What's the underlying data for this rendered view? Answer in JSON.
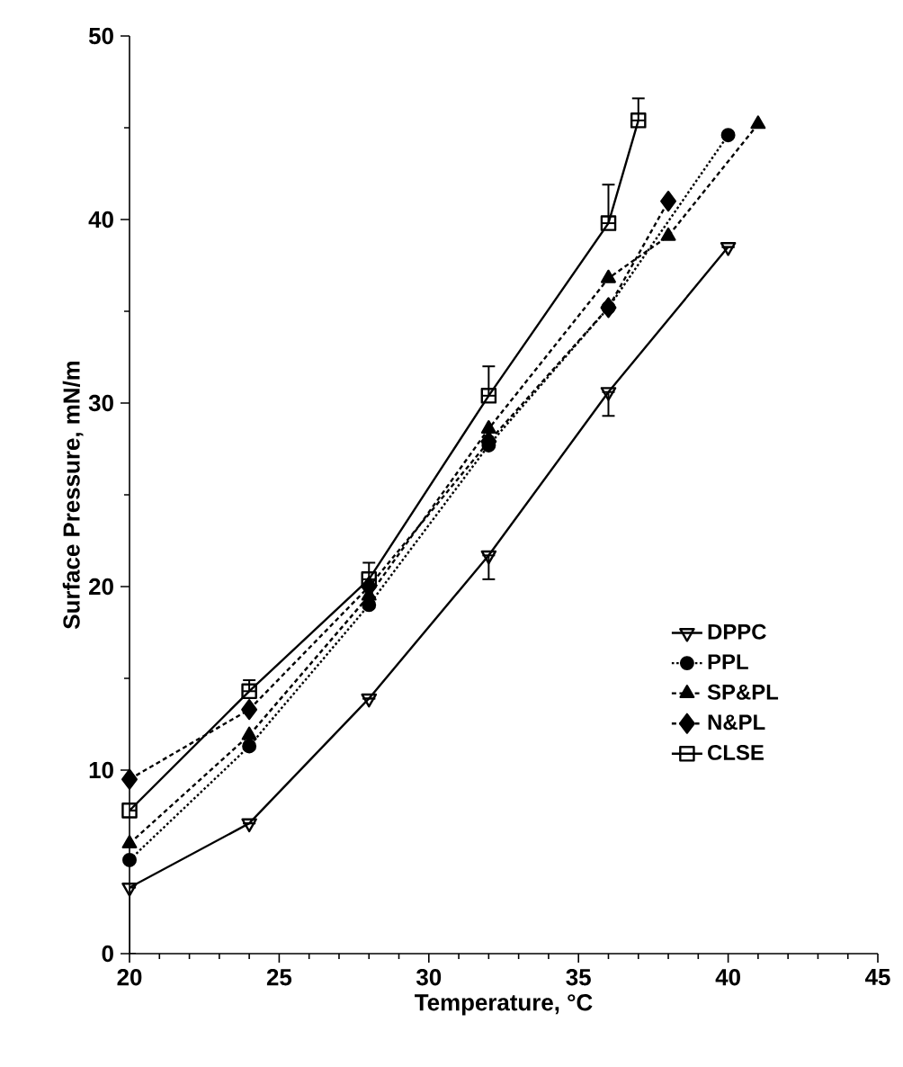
{
  "chart_data": {
    "type": "line",
    "xlabel": "Temperature, °C",
    "ylabel": "Surface Pressure, mN/m",
    "xlim": [
      20,
      45
    ],
    "xticks": [
      20,
      25,
      30,
      35,
      40,
      45
    ],
    "ylim": [
      0,
      50
    ],
    "yticks": [
      0,
      10,
      20,
      30,
      40,
      50
    ],
    "grid": false,
    "legend": "bottom right",
    "series": [
      {
        "name": "DPPC",
        "color": "#000000",
        "marker": "triangle-down",
        "line_style": "solid",
        "x": [
          20,
          24,
          28,
          32,
          36,
          40
        ],
        "values": [
          3.6,
          7.1,
          13.9,
          21.7,
          30.6,
          38.5
        ],
        "errors": [
          [
            0,
            3.6
          ],
          null,
          null,
          [
            20.4,
            21.7
          ],
          [
            29.3,
            30.6
          ],
          null
        ]
      },
      {
        "name": "PPL",
        "color": "#000000",
        "marker": "circle",
        "line_style": "dotted",
        "x": [
          20,
          24,
          28,
          32,
          36,
          40
        ],
        "values": [
          5.1,
          11.3,
          19.0,
          27.7,
          35.2,
          44.6
        ]
      },
      {
        "name": "SP&PL",
        "color": "#000000",
        "marker": "triangle",
        "line_style": "dashed",
        "x": [
          20,
          24,
          28,
          32,
          36,
          38,
          41
        ],
        "values": [
          6.0,
          11.9,
          19.5,
          28.6,
          36.8,
          39.1,
          45.2
        ]
      },
      {
        "name": "N&PL",
        "color": "#000000",
        "marker": "diamond",
        "line_style": "dashed",
        "x": [
          20,
          24,
          28,
          32,
          36,
          38
        ],
        "values": [
          9.5,
          13.3,
          20.0,
          27.9,
          35.2,
          41.0
        ]
      },
      {
        "name": "CLSE",
        "color": "#000000",
        "marker": "square",
        "line_style": "solid",
        "x": [
          20,
          24,
          28,
          32,
          36,
          37
        ],
        "values": [
          7.8,
          14.3,
          20.4,
          30.4,
          39.8,
          45.4
        ],
        "errors": [
          null,
          [
            14.3,
            14.9
          ],
          [
            20.4,
            21.3
          ],
          [
            30.4,
            32.0
          ],
          [
            39.8,
            41.9
          ],
          [
            45.4,
            46.6
          ]
        ]
      }
    ]
  }
}
